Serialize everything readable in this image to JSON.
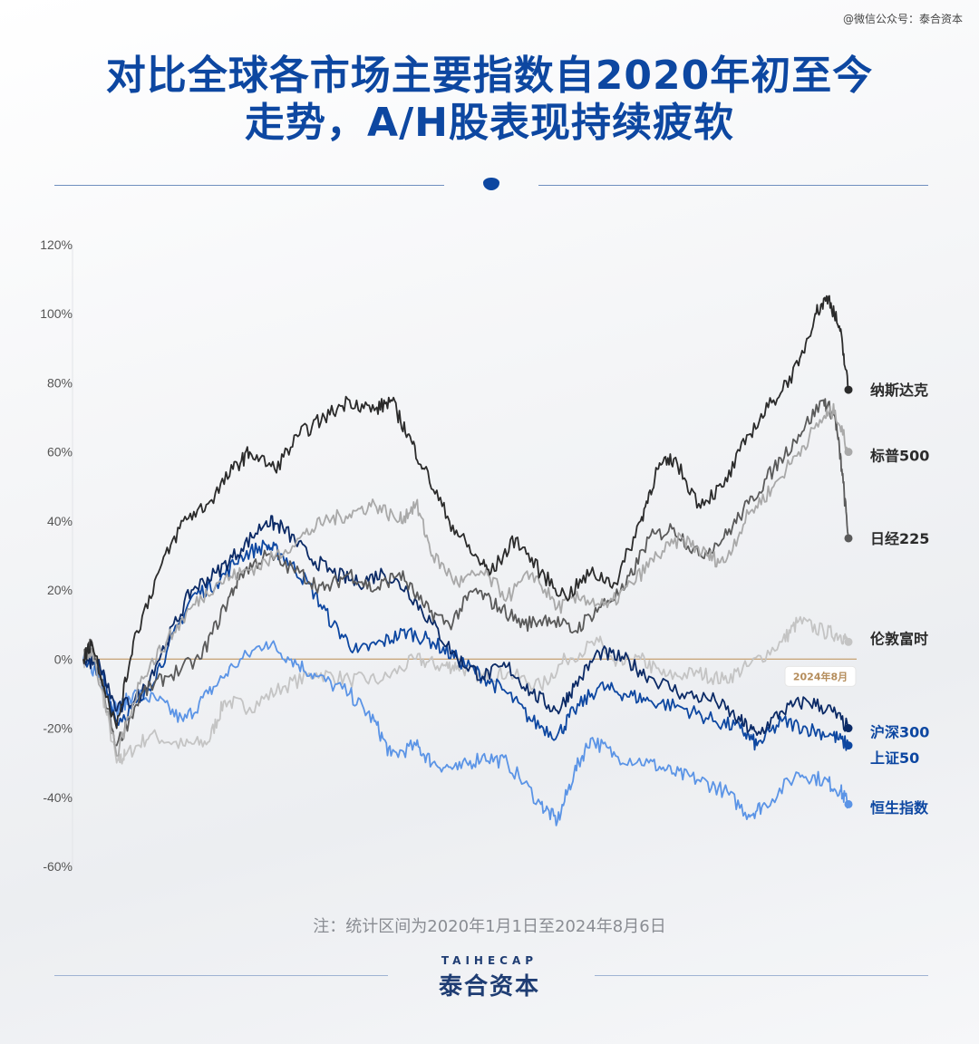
{
  "watermark": "@微信公众号：泰合资本",
  "title_line1": "对比全球各市场主要指数自2020年初至今",
  "title_line2": "走势，A/H股表现持续疲软",
  "note": "注：统计区间为2020年1月1日至2024年8月6日",
  "brand_en": "TAIHECAP",
  "brand_cn": "泰合资本",
  "chart_data": {
    "type": "line",
    "ylim": [
      -60,
      120
    ],
    "yticks": [
      -60,
      -40,
      -20,
      0,
      20,
      40,
      60,
      80,
      100,
      120
    ],
    "ytick_labels": [
      "-60%",
      "-40%",
      "-20%",
      "0%",
      "20%",
      "40%",
      "60%",
      "80%",
      "100%",
      "120%"
    ],
    "xlim": [
      2020.0,
      2024.6
    ],
    "annotation": "2024年8月",
    "zero_line_color": "#c9a77c",
    "series": [
      {
        "name": "伦敦富时",
        "color": "#c4c4c4",
        "label_color": "#2b2b2b",
        "end": 5,
        "x": [
          2020.0,
          2020.08,
          2020.2,
          2020.25,
          2020.4,
          2020.6,
          2020.75,
          2020.85,
          2021.0,
          2021.2,
          2021.4,
          2021.6,
          2021.8,
          2022.0,
          2022.15,
          2022.25,
          2022.4,
          2022.55,
          2022.75,
          2022.9,
          2023.1,
          2023.2,
          2023.35,
          2023.5,
          2023.7,
          2023.85,
          2024.0,
          2024.2,
          2024.3,
          2024.45,
          2024.55,
          2024.6
        ],
        "y": [
          0,
          -2,
          -30,
          -28,
          -22,
          -25,
          -24,
          -12,
          -14,
          -8,
          -4,
          -6,
          -6,
          0,
          -2,
          -2,
          -5,
          -4,
          -8,
          0,
          5,
          -2,
          0,
          -5,
          -4,
          -6,
          -2,
          5,
          11,
          8,
          7,
          5
        ]
      },
      {
        "name": "恒生指数",
        "color": "#5b94e6",
        "label_color": "#0d47a1",
        "end": -42,
        "x": [
          2020.0,
          2020.1,
          2020.2,
          2020.3,
          2020.45,
          2020.6,
          2020.75,
          2020.9,
          2021.1,
          2021.25,
          2021.4,
          2021.6,
          2021.75,
          2021.85,
          2022.0,
          2022.1,
          2022.25,
          2022.4,
          2022.55,
          2022.75,
          2022.85,
          2022.95,
          2023.05,
          2023.2,
          2023.4,
          2023.55,
          2023.7,
          2023.85,
          2024.0,
          2024.1,
          2024.3,
          2024.45,
          2024.55,
          2024.6
        ],
        "y": [
          0,
          -5,
          -15,
          -10,
          -12,
          -18,
          -10,
          -2,
          5,
          0,
          -5,
          -10,
          -18,
          -28,
          -25,
          -30,
          -32,
          -28,
          -30,
          -42,
          -47,
          -33,
          -23,
          -28,
          -30,
          -33,
          -35,
          -38,
          -45,
          -42,
          -33,
          -35,
          -38,
          -42
        ]
      },
      {
        "name": "上证50",
        "color": "#0d47a1",
        "label_color": "#0d47a1",
        "end": -25,
        "x": [
          2020.0,
          2020.1,
          2020.2,
          2020.35,
          2020.5,
          2020.65,
          2020.8,
          2020.95,
          2021.1,
          2021.2,
          2021.35,
          2021.5,
          2021.65,
          2021.8,
          2021.95,
          2022.1,
          2022.25,
          2022.4,
          2022.55,
          2022.7,
          2022.85,
          2022.95,
          2023.1,
          2023.25,
          2023.4,
          2023.6,
          2023.8,
          2023.95,
          2024.05,
          2024.2,
          2024.35,
          2024.5,
          2024.6
        ],
        "y": [
          0,
          -3,
          -18,
          -12,
          2,
          18,
          22,
          30,
          33,
          30,
          22,
          10,
          2,
          5,
          8,
          5,
          0,
          -5,
          -10,
          -18,
          -22,
          -15,
          -8,
          -10,
          -12,
          -14,
          -18,
          -20,
          -25,
          -18,
          -20,
          -22,
          -25
        ]
      },
      {
        "name": "沪深300",
        "color": "#0b2a66",
        "label_color": "#0d47a1",
        "end": -20,
        "x": [
          2020.0,
          2020.1,
          2020.2,
          2020.35,
          2020.5,
          2020.65,
          2020.8,
          2020.95,
          2021.1,
          2021.2,
          2021.35,
          2021.5,
          2021.65,
          2021.8,
          2021.95,
          2022.1,
          2022.25,
          2022.4,
          2022.55,
          2022.7,
          2022.85,
          2022.95,
          2023.1,
          2023.25,
          2023.4,
          2023.6,
          2023.8,
          2023.95,
          2024.05,
          2024.2,
          2024.35,
          2024.5,
          2024.6
        ],
        "y": [
          0,
          -2,
          -15,
          -10,
          5,
          20,
          25,
          32,
          40,
          38,
          30,
          25,
          22,
          25,
          20,
          10,
          0,
          -5,
          -2,
          -10,
          -15,
          -8,
          2,
          0,
          -5,
          -10,
          -12,
          -18,
          -22,
          -15,
          -12,
          -15,
          -20
        ]
      },
      {
        "name": "日经225",
        "color": "#5a5a5a",
        "label_color": "#2b2b2b",
        "end": 35,
        "x": [
          2020.0,
          2020.05,
          2020.2,
          2020.35,
          2020.5,
          2020.7,
          2020.85,
          2020.95,
          2021.1,
          2021.3,
          2021.45,
          2021.6,
          2021.75,
          2021.9,
          2022.05,
          2022.2,
          2022.35,
          2022.5,
          2022.65,
          2022.8,
          2022.95,
          2023.1,
          2023.25,
          2023.4,
          2023.55,
          2023.7,
          2023.85,
          2024.0,
          2024.15,
          2024.3,
          2024.45,
          2024.52,
          2024.56,
          2024.6
        ],
        "y": [
          0,
          5,
          -25,
          -10,
          -5,
          0,
          15,
          25,
          30,
          25,
          20,
          25,
          20,
          25,
          15,
          10,
          20,
          15,
          10,
          12,
          8,
          15,
          20,
          35,
          38,
          30,
          35,
          45,
          55,
          65,
          75,
          70,
          55,
          35
        ]
      },
      {
        "name": "标普500",
        "color": "#a9a9a9",
        "label_color": "#2b2b2b",
        "end": 60,
        "x": [
          2020.0,
          2020.05,
          2020.2,
          2020.35,
          2020.5,
          2020.65,
          2020.8,
          2020.95,
          2021.1,
          2021.3,
          2021.45,
          2021.6,
          2021.75,
          2021.9,
          2022.0,
          2022.1,
          2022.25,
          2022.4,
          2022.55,
          2022.7,
          2022.85,
          2023.0,
          2023.15,
          2023.3,
          2023.45,
          2023.6,
          2023.75,
          2023.85,
          2024.0,
          2024.15,
          2024.3,
          2024.45,
          2024.52,
          2024.6
        ],
        "y": [
          0,
          3,
          -28,
          -5,
          5,
          15,
          22,
          25,
          28,
          35,
          40,
          42,
          45,
          40,
          45,
          30,
          22,
          25,
          18,
          25,
          15,
          18,
          15,
          22,
          30,
          35,
          30,
          28,
          42,
          50,
          60,
          70,
          72,
          60
        ]
      },
      {
        "name": "纳斯达克",
        "color": "#2b2b2b",
        "label_color": "#2b2b2b",
        "end": 78,
        "x": [
          2020.0,
          2020.05,
          2020.2,
          2020.3,
          2020.45,
          2020.6,
          2020.75,
          2020.9,
          2021.0,
          2021.15,
          2021.3,
          2021.45,
          2021.6,
          2021.75,
          2021.85,
          2021.95,
          2022.05,
          2022.2,
          2022.35,
          2022.45,
          2022.6,
          2022.75,
          2022.9,
          2023.05,
          2023.2,
          2023.35,
          2023.45,
          2023.55,
          2023.7,
          2023.85,
          2024.0,
          2024.15,
          2024.3,
          2024.4,
          2024.48,
          2024.55,
          2024.6
        ],
        "y": [
          0,
          5,
          -20,
          5,
          25,
          40,
          45,
          55,
          60,
          55,
          65,
          70,
          75,
          72,
          75,
          65,
          55,
          40,
          30,
          25,
          35,
          25,
          18,
          25,
          22,
          40,
          55,
          58,
          45,
          50,
          65,
          75,
          85,
          100,
          105,
          95,
          78
        ]
      }
    ]
  }
}
